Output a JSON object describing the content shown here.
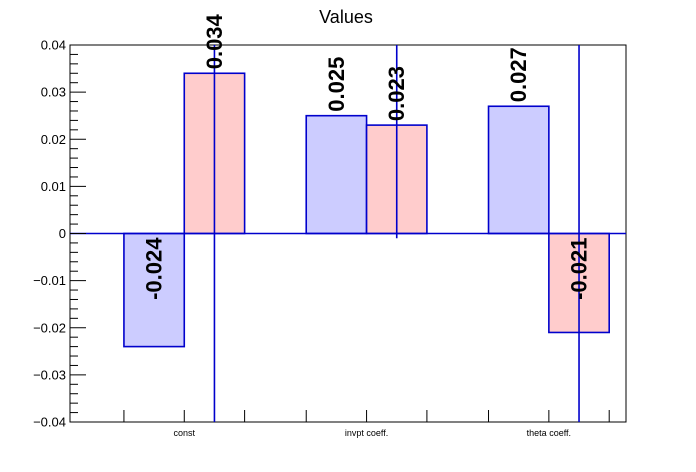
{
  "chart_data": {
    "type": "bar",
    "title": "Values",
    "xlabel": "",
    "ylabel": "",
    "ylim": [
      -0.04,
      0.04
    ],
    "yticks": [
      -0.04,
      -0.03,
      -0.02,
      -0.01,
      0,
      0.01,
      0.02,
      0.03,
      0.04
    ],
    "ytick_labels": [
      "−0.04",
      "−0.03",
      "−0.02",
      "−0.01",
      "0",
      "0.01",
      "0.02",
      "0.03",
      "0.04"
    ],
    "categories": [
      "const",
      "invpt coeff.",
      "theta coeff."
    ],
    "series": [
      {
        "values": [
          -0.024,
          0.025,
          0.027
        ],
        "labels": [
          "-0.024",
          "0.025",
          "0.027"
        ],
        "error_low": [
          null,
          null,
          null
        ],
        "error_high": [
          null,
          null,
          null
        ],
        "fill": "#ccccff",
        "stroke": "#0000cc"
      },
      {
        "values": [
          0.034,
          0.023,
          -0.021
        ],
        "labels": [
          "0.034",
          "0.023",
          "-0.021"
        ],
        "error_low": [
          -0.04,
          -0.001,
          -0.04
        ],
        "error_high": [
          0.04,
          0.04,
          0.04
        ],
        "fill": "#ffcccc",
        "stroke": "#0000cc"
      }
    ],
    "zero_line_color": "#0000cc",
    "grid": false,
    "legend": "none"
  }
}
